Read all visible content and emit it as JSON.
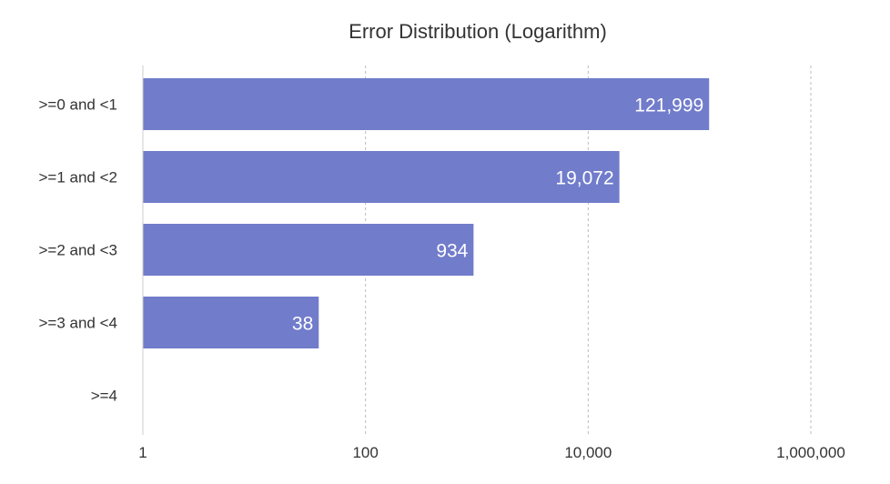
{
  "chart_data": {
    "type": "bar",
    "orientation": "horizontal",
    "title": "Error Distribution (Logarithm)",
    "xlabel": "",
    "ylabel": "",
    "x_scale": "log",
    "xlim": [
      1,
      1000000
    ],
    "x_ticks": [
      {
        "value": 1,
        "label": "1"
      },
      {
        "value": 100,
        "label": "100"
      },
      {
        "value": 10000,
        "label": "10,000"
      },
      {
        "value": 1000000,
        "label": "1,000,000"
      }
    ],
    "categories": [
      ">=0 and <1",
      ">=1 and <2",
      ">=2 and <3",
      ">=3 and <4",
      ">=4"
    ],
    "values": [
      121999,
      19072,
      934,
      38,
      null
    ],
    "value_labels": [
      "121,999",
      "19,072",
      "934",
      "38",
      ""
    ],
    "grid": true,
    "legend": "none",
    "bar_color": "#717ccb",
    "value_label_color": "#ffffff",
    "axis_text_color": "#333333",
    "grid_color": "#bbbbbb"
  }
}
